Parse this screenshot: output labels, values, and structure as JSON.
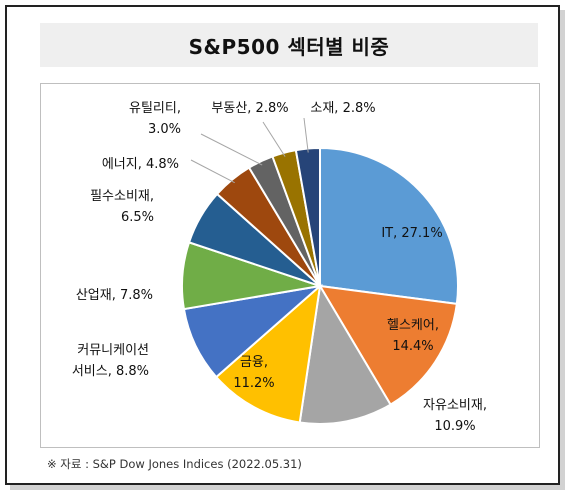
{
  "title": "S&P500 섹터별 비중",
  "source": "※ 자료 : S&P Dow Jones Indices (2022.05.31)",
  "chart_data": {
    "type": "pie",
    "title": "S&P500 섹터별 비중",
    "unit": "%",
    "slices": [
      {
        "name": "IT",
        "value": 27.1,
        "color": "#5b9bd5",
        "label_lines": [
          "IT, 27.1%"
        ]
      },
      {
        "name": "헬스케어",
        "value": 14.4,
        "color": "#ed7d31",
        "label_lines": [
          "헬스케어,",
          "14.4%"
        ]
      },
      {
        "name": "자유소비재",
        "value": 10.9,
        "color": "#a5a5a5",
        "label_lines": [
          "자유소비재,",
          "10.9%"
        ]
      },
      {
        "name": "금융",
        "value": 11.2,
        "color": "#ffc000",
        "label_lines": [
          "금융,",
          "11.2%"
        ]
      },
      {
        "name": "커뮤니케이션 서비스",
        "value": 8.8,
        "color": "#4472c4",
        "label_lines": [
          "커뮤니케이션",
          "서비스, 8.8%"
        ]
      },
      {
        "name": "산업재",
        "value": 7.8,
        "color": "#70ad47",
        "label_lines": [
          "산업재, 7.8%"
        ]
      },
      {
        "name": "필수소비재",
        "value": 6.5,
        "color": "#255e91",
        "label_lines": [
          "필수소비재,",
          "6.5%"
        ]
      },
      {
        "name": "에너지",
        "value": 4.8,
        "color": "#9e480e",
        "label_lines": [
          "에너지, 4.8%"
        ]
      },
      {
        "name": "유틸리티",
        "value": 3.0,
        "color": "#636363",
        "label_lines": [
          "유틸리티,",
          "3.0%"
        ]
      },
      {
        "name": "부동산",
        "value": 2.8,
        "color": "#997300",
        "label_lines": [
          "부동산, 2.8%"
        ]
      },
      {
        "name": "소재",
        "value": 2.8,
        "color": "#264478",
        "label_lines": [
          "소재, 2.8%"
        ]
      }
    ]
  }
}
